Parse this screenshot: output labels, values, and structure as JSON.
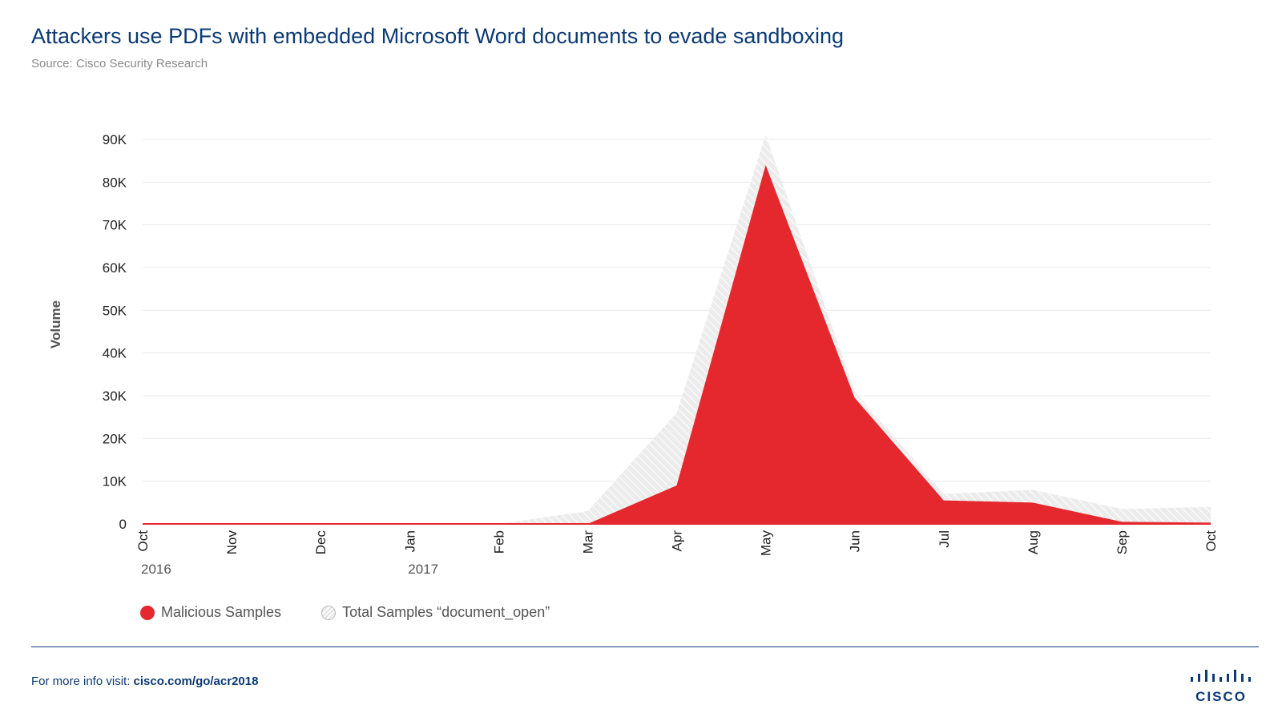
{
  "header": {
    "title": "Attackers use PDFs with embedded Microsoft Word documents to evade sandboxing",
    "subtitle": "Source: Cisco Security Research"
  },
  "chart_data": {
    "type": "area",
    "ylabel": "Volume",
    "xlabel": "",
    "categories": [
      "Oct",
      "Nov",
      "Dec",
      "Jan",
      "Feb",
      "Mar",
      "Apr",
      "May",
      "Jun",
      "Jul",
      "Aug",
      "Sep",
      "Oct"
    ],
    "year_labels": [
      {
        "index": 0,
        "label": "2016"
      },
      {
        "index": 3,
        "label": "2017"
      }
    ],
    "ylim": [
      0,
      90000
    ],
    "yticks": [
      0,
      10000,
      20000,
      30000,
      40000,
      50000,
      60000,
      70000,
      80000,
      90000
    ],
    "ytick_labels": [
      "0",
      "10K",
      "20K",
      "30K",
      "40K",
      "50K",
      "60K",
      "70K",
      "80K",
      "90K"
    ],
    "grid": true,
    "legend_position": "bottom-left",
    "series": [
      {
        "name": "Total Samples “document_open”",
        "values": [
          0,
          0,
          0,
          0,
          0,
          3000,
          26000,
          91000,
          31000,
          7000,
          8000,
          3500,
          4000
        ],
        "color": "#e3e3e3",
        "style": "hatched"
      },
      {
        "name": "Malicious Samples",
        "values": [
          0,
          0,
          0,
          0,
          0,
          0,
          9000,
          84000,
          29500,
          5500,
          5000,
          500,
          300
        ],
        "color": "#e4282d",
        "style": "solid"
      }
    ]
  },
  "legend": {
    "malicious": "Malicious Samples",
    "total": "Total Samples “document_open”"
  },
  "footer": {
    "prefix": "For more info visit: ",
    "link": "cisco.com/go/acr2018"
  },
  "logo": {
    "word": "CISCO"
  }
}
